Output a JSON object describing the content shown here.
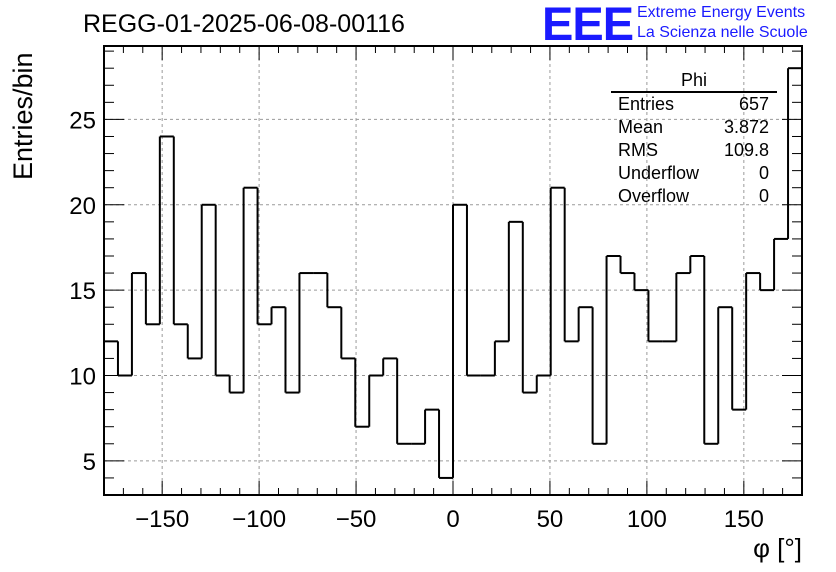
{
  "header": {
    "run_title": "REGG-01-2025-06-08-00116",
    "logo_mark": "EEE",
    "logo_line1": "Extreme Energy Events",
    "logo_line2": "La Scienza nelle Scuole"
  },
  "stats_box": {
    "title": "Phi",
    "rows": [
      {
        "label": "Entries",
        "value": "657"
      },
      {
        "label": "Mean",
        "value": "3.872"
      },
      {
        "label": "RMS",
        "value": "109.8"
      },
      {
        "label": "Underflow",
        "value": "0"
      },
      {
        "label": "Overflow",
        "value": "0"
      }
    ]
  },
  "chart_data": {
    "type": "bar",
    "title": "REGG-01-2025-06-08-00116",
    "xlabel": "φ [°]",
    "ylabel": "Entries/bin",
    "xlim": [
      -180,
      180
    ],
    "ylim": [
      3,
      29.3
    ],
    "bin_width": 7.2,
    "x_ticks": [
      -150,
      -100,
      -50,
      0,
      50,
      100,
      150
    ],
    "x_tick_labels": [
      "−150",
      "−100",
      "−50",
      "0",
      "50",
      "100",
      "150"
    ],
    "y_ticks": [
      5,
      10,
      15,
      20,
      25
    ],
    "y_tick_labels": [
      "5",
      "10",
      "15",
      "20",
      "25"
    ],
    "grid": true,
    "legend": "top-right stats box",
    "series": [
      {
        "values": [
          12,
          10,
          16,
          13,
          24,
          13,
          11,
          20,
          10,
          9,
          21,
          13,
          14,
          9,
          16,
          16,
          14,
          11,
          7,
          10,
          11,
          6,
          6,
          8,
          4,
          20,
          10,
          10,
          12,
          19,
          9,
          10,
          21,
          12,
          14,
          6,
          17,
          16,
          15,
          12,
          12,
          16,
          17,
          6,
          14,
          8,
          16,
          15,
          18,
          28
        ]
      }
    ],
    "line_color": "#000000"
  }
}
